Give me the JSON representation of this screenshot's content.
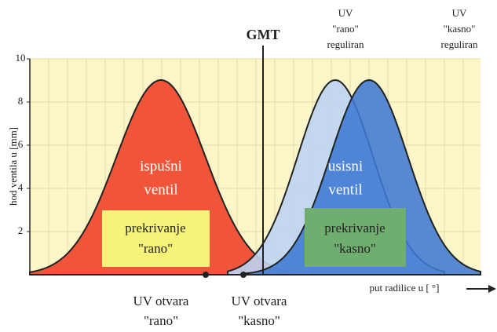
{
  "diagram": {
    "y_axis_label": "hod ventila u [mm]",
    "y_ticks": [
      "2",
      "4",
      "6",
      "8",
      "10"
    ],
    "gmt": "GMT",
    "uv_rano_reguliran": [
      "UV",
      "\"rano\"",
      "reguliran"
    ],
    "uv_kasno_reguliran": [
      "UV",
      "\"kasno\"",
      "reguliran"
    ],
    "exhaust": [
      "ispušni",
      "ventil"
    ],
    "intake": [
      "usisni",
      "ventil"
    ],
    "overlap_early": [
      "prekrivanje",
      "\"rano\""
    ],
    "overlap_late": [
      "prekrivanje",
      "\"kasno\""
    ],
    "uv_opens_early": [
      "UV otvara",
      "\"rano\""
    ],
    "uv_opens_late": [
      "UV otvara",
      "\"kasno\""
    ],
    "x_axis_label": "put radilice u [ °]"
  }
}
